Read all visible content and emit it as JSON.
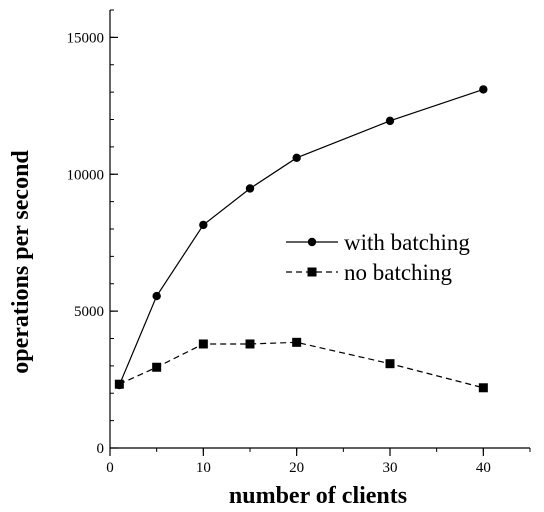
{
  "chart_data": {
    "type": "line",
    "xlabel": "number of clients",
    "ylabel": "operations per second",
    "xlim": [
      0,
      45
    ],
    "ylim": [
      0,
      16000
    ],
    "xticks": [
      0,
      10,
      20,
      30,
      40
    ],
    "yticks": [
      0,
      5000,
      10000,
      15000
    ],
    "x_minor_step": 5,
    "y_minor_step": 1000,
    "grid": false,
    "legend_position": "center-right",
    "series": [
      {
        "name": "with batching",
        "line_style": "solid",
        "marker": "circle",
        "color": "#000000",
        "x": [
          1,
          5,
          10,
          15,
          20,
          30,
          40
        ],
        "y": [
          2300,
          5550,
          8150,
          9480,
          10600,
          11950,
          13100
        ]
      },
      {
        "name": "no batching",
        "line_style": "dashed",
        "marker": "square",
        "color": "#000000",
        "x": [
          1,
          5,
          10,
          15,
          20,
          30,
          40
        ],
        "y": [
          2330,
          2950,
          3800,
          3800,
          3860,
          3080,
          2200
        ]
      }
    ]
  }
}
